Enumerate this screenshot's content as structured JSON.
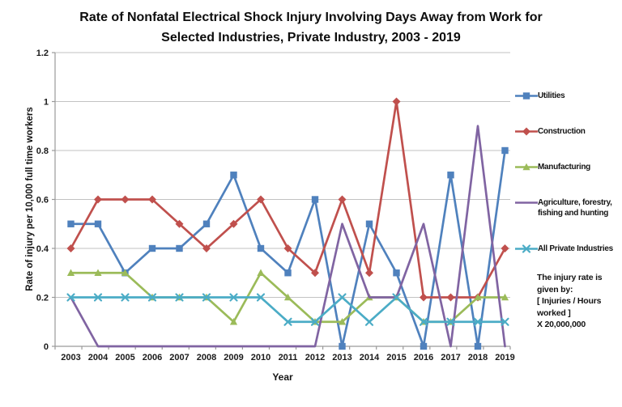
{
  "title_lines": [
    "Rate of Nonfatal Electrical Shock Injury Involving Days Away from Work for",
    "Selected Industries, Private Industry, 2003 - 2019"
  ],
  "note": {
    "text": "The injury rate is\ngiven by:\n[ Injuries / Hours\nworked ]\nX 20,000,000"
  },
  "colors": {
    "gridline": "#c2c2c2",
    "axis": "#9a9a9a",
    "text": "#1a1a1a",
    "background": "#ffffff"
  },
  "chart_data": {
    "type": "line",
    "title": "Rate of Nonfatal Electrical Shock Injury Involving Days Away from Work for Selected Industries, Private Industry, 2003 - 2019",
    "xlabel": "Year",
    "ylabel": "Rate of injury per 10,000 full time workers",
    "ylim": [
      0,
      1.2
    ],
    "yticks": [
      0,
      0.2,
      0.4,
      0.6,
      0.8,
      1,
      1.2
    ],
    "ytick_labels": [
      "0",
      "0.2",
      "0.4",
      "0.6",
      "0.8",
      "1",
      "1.2"
    ],
    "grid": "horizontal",
    "legend_position": "right",
    "categories": [
      "2003",
      "2004",
      "2005",
      "2006",
      "2007",
      "2008",
      "2009",
      "2010",
      "2011",
      "2012",
      "2013",
      "2014",
      "2015",
      "2016",
      "2017",
      "2018",
      "2019"
    ],
    "series": [
      {
        "name": "Utilities",
        "color": "#4F81BD",
        "marker": "square",
        "values": [
          0.5,
          0.5,
          0.3,
          0.4,
          0.4,
          0.5,
          0.7,
          0.4,
          0.3,
          0.6,
          0,
          0.5,
          0.3,
          0,
          0.7,
          0,
          0.8
        ]
      },
      {
        "name": "Construction",
        "color": "#C0504D",
        "marker": "diamond",
        "values": [
          0.4,
          0.6,
          0.6,
          0.6,
          0.5,
          0.4,
          0.5,
          0.6,
          0.4,
          0.3,
          0.6,
          0.3,
          1,
          0.2,
          0.2,
          0.2,
          0.4
        ]
      },
      {
        "name": "Manufacturing",
        "color": "#9BBB59",
        "marker": "triangle",
        "values": [
          0.3,
          0.3,
          0.3,
          0.2,
          0.2,
          0.2,
          0.1,
          0.3,
          0.2,
          0.1,
          0.1,
          0.2,
          0.2,
          0.1,
          0.1,
          0.2,
          0.2
        ]
      },
      {
        "name": "Agriculture, forestry, fishing and hunting",
        "legend_lines": [
          "Agriculture, forestry,",
          "fishing and hunting"
        ],
        "color": "#8064A2",
        "marker": "none",
        "values": [
          0.2,
          0,
          0,
          0,
          0,
          0,
          0,
          0,
          0,
          0,
          0.5,
          0.2,
          0.2,
          0.5,
          0,
          0.9,
          0
        ]
      },
      {
        "name": "All Private Industries",
        "color": "#4BACC6",
        "marker": "x",
        "values": [
          0.2,
          0.2,
          0.2,
          0.2,
          0.2,
          0.2,
          0.2,
          0.2,
          0.1,
          0.1,
          0.2,
          0.1,
          0.2,
          0.1,
          0.1,
          0.1,
          0.1
        ]
      }
    ]
  }
}
